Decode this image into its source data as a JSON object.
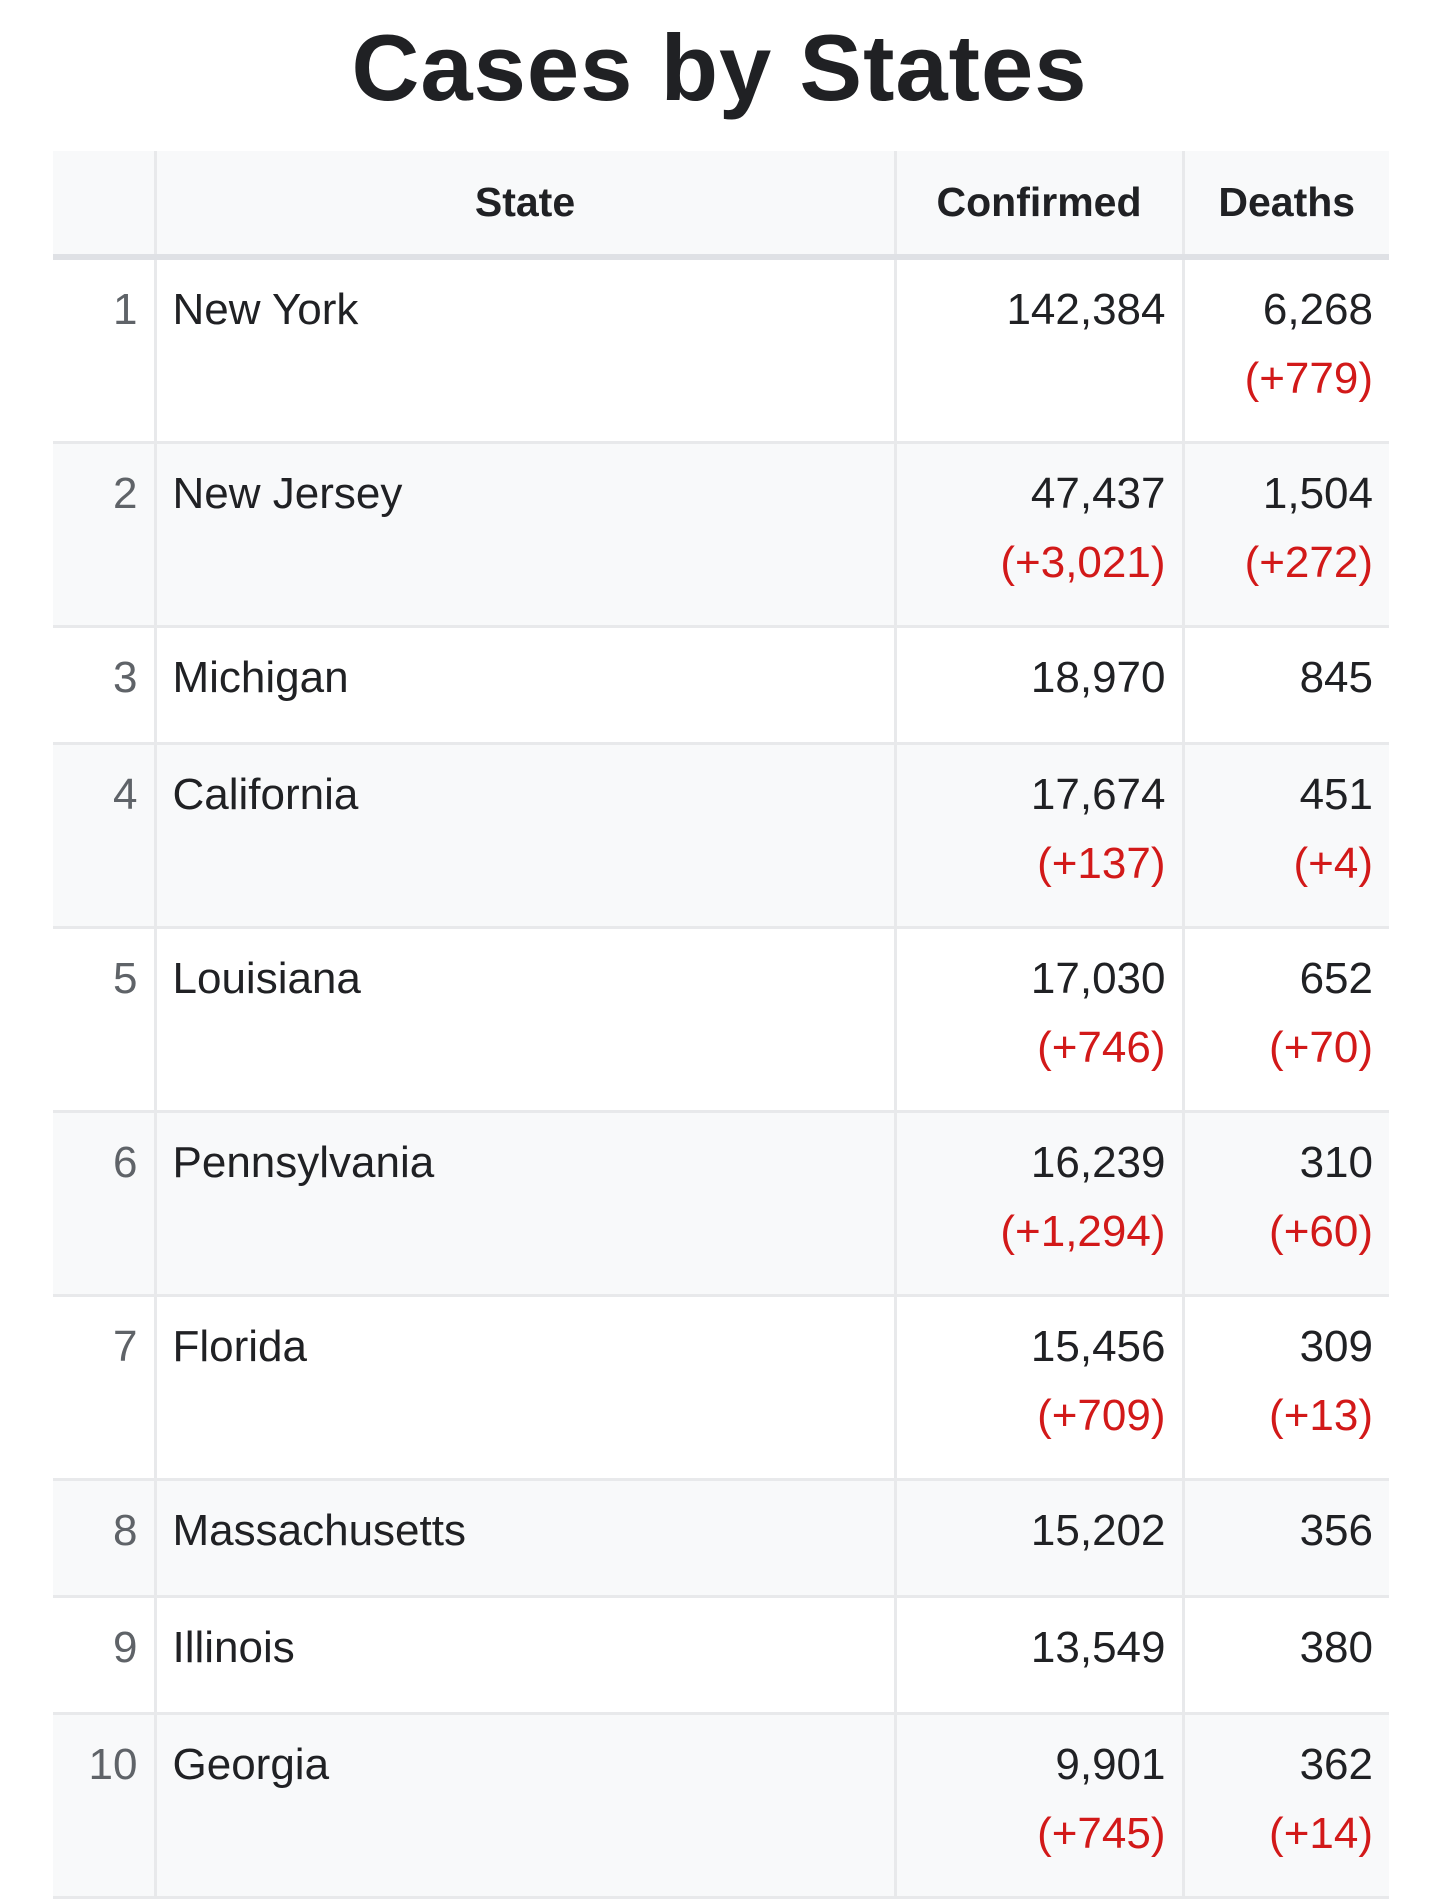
{
  "page": {
    "title": "Cases by States"
  },
  "table": {
    "headers": {
      "rank": "",
      "state": "State",
      "confirmed": "Confirmed",
      "deaths": "Deaths"
    },
    "rows": [
      {
        "rank": "1",
        "state": "New York",
        "confirmed": "142,384",
        "confirmed_delta": "",
        "deaths": "6,268",
        "deaths_delta": "(+779)"
      },
      {
        "rank": "2",
        "state": "New Jersey",
        "confirmed": "47,437",
        "confirmed_delta": "(+3,021)",
        "deaths": "1,504",
        "deaths_delta": "(+272)"
      },
      {
        "rank": "3",
        "state": "Michigan",
        "confirmed": "18,970",
        "confirmed_delta": "",
        "deaths": "845",
        "deaths_delta": ""
      },
      {
        "rank": "4",
        "state": "California",
        "confirmed": "17,674",
        "confirmed_delta": "(+137)",
        "deaths": "451",
        "deaths_delta": "(+4)"
      },
      {
        "rank": "5",
        "state": "Louisiana",
        "confirmed": "17,030",
        "confirmed_delta": "(+746)",
        "deaths": "652",
        "deaths_delta": "(+70)"
      },
      {
        "rank": "6",
        "state": "Pennsylvania",
        "confirmed": "16,239",
        "confirmed_delta": "(+1,294)",
        "deaths": "310",
        "deaths_delta": "(+60)"
      },
      {
        "rank": "7",
        "state": "Florida",
        "confirmed": "15,456",
        "confirmed_delta": "(+709)",
        "deaths": "309",
        "deaths_delta": "(+13)"
      },
      {
        "rank": "8",
        "state": "Massachusetts",
        "confirmed": "15,202",
        "confirmed_delta": "",
        "deaths": "356",
        "deaths_delta": ""
      },
      {
        "rank": "9",
        "state": "Illinois",
        "confirmed": "13,549",
        "confirmed_delta": "",
        "deaths": "380",
        "deaths_delta": ""
      },
      {
        "rank": "10",
        "state": "Georgia",
        "confirmed": "9,901",
        "confirmed_delta": "(+745)",
        "deaths": "362",
        "deaths_delta": "(+14)"
      }
    ]
  },
  "colors": {
    "delta": "#d21919",
    "header_bg": "#f8f9fa",
    "stripe_bg": "#f8f9fa",
    "border": "#e8e9eb"
  }
}
